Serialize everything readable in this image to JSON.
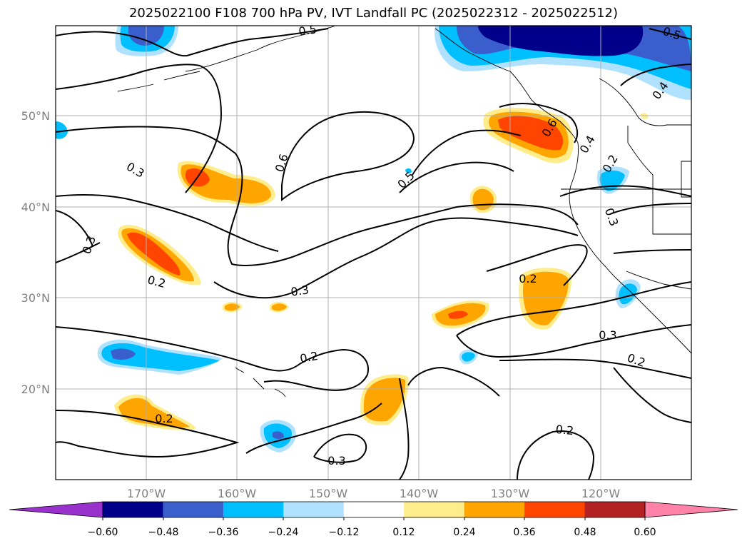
{
  "title": "2025022100 F108 700 hPa PV, IVT Landfall PC (2025022312 - 2025022512)",
  "map": {
    "lat_labels": [
      "50°N",
      "40°N",
      "30°N",
      "20°N"
    ],
    "lon_labels": [
      "170°W",
      "160°W",
      "150°W",
      "140°W",
      "130°W",
      "120°W"
    ],
    "contour_labels": [
      "0.5",
      "0.5",
      "0.4",
      "0.3",
      "0.6",
      "0.5",
      "0.6",
      "0.4",
      "0.3",
      "0.2",
      "0.3",
      "0.2",
      "0.3",
      "0.2",
      "0.2",
      "0.2",
      "0.3",
      "0.2",
      "0.3",
      "0.2"
    ]
  },
  "colorbar": {
    "ticks": [
      "−0.60",
      "−0.48",
      "−0.36",
      "−0.24",
      "−0.12",
      "0.12",
      "0.24",
      "0.36",
      "0.48",
      "0.60"
    ],
    "colors": [
      "#9932cc",
      "#00008b",
      "#3a5fcd",
      "#00bfff",
      "#b0e2ff",
      "#ffffff",
      "#ffec8b",
      "#ffa500",
      "#ff4500",
      "#b22222",
      "#ff82ab"
    ]
  }
}
